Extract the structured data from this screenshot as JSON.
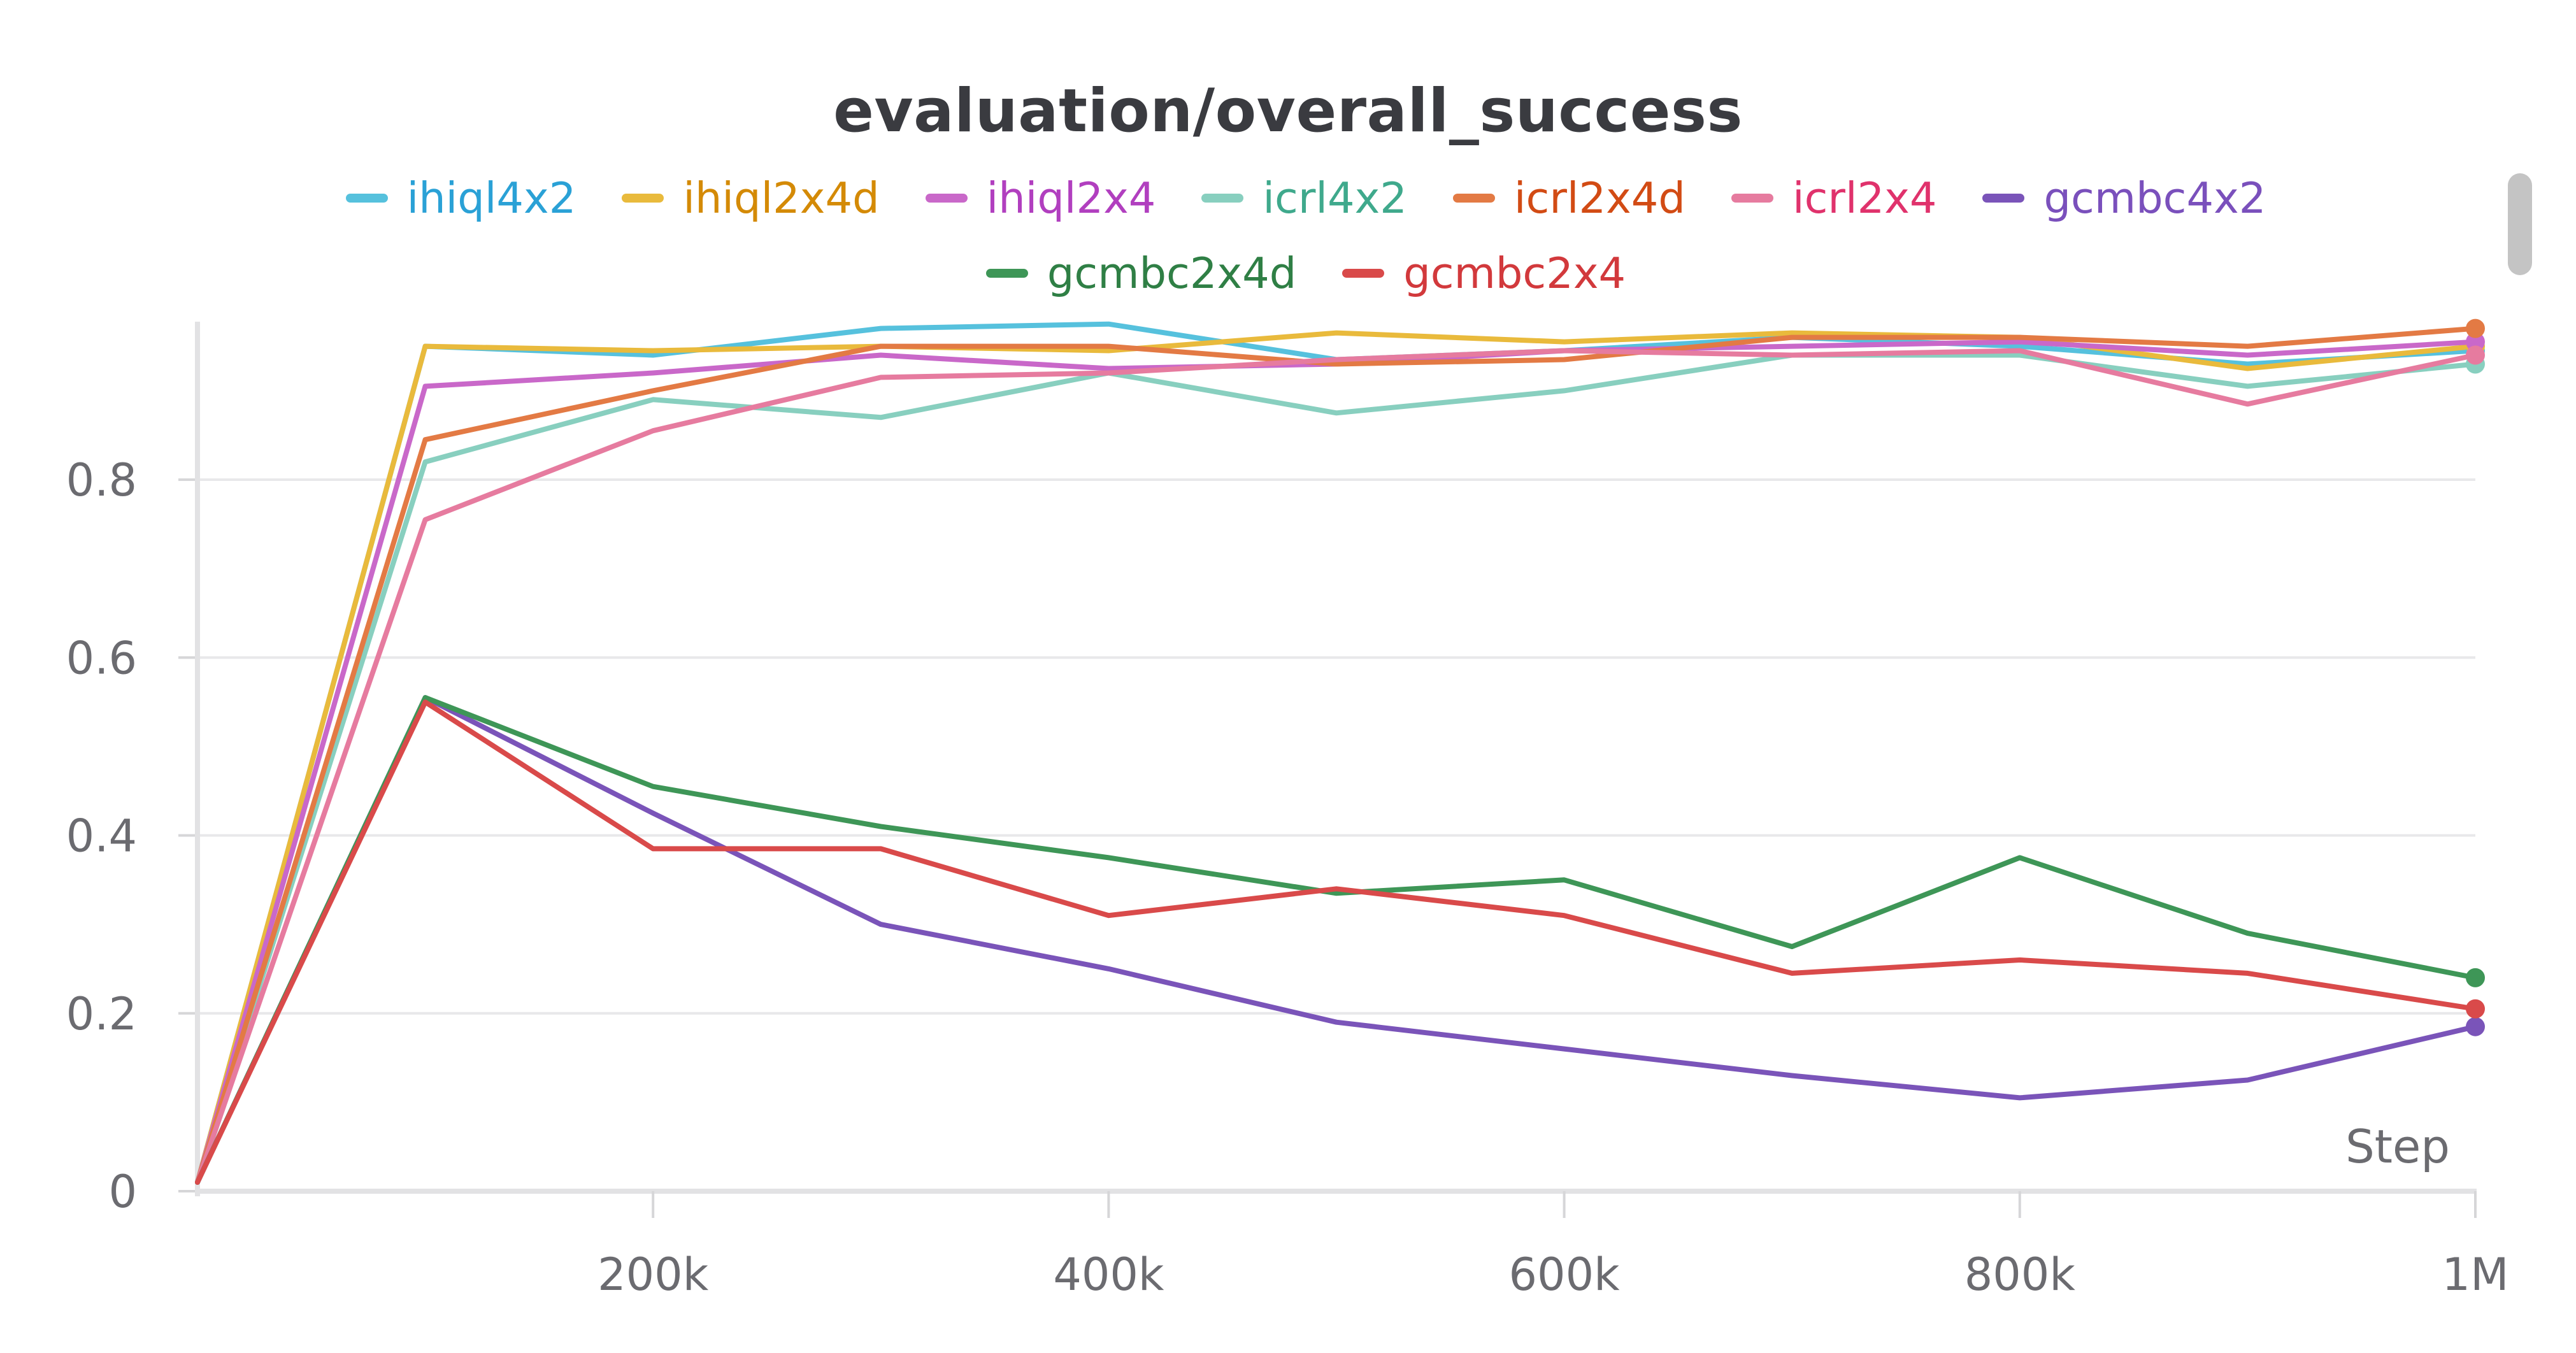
{
  "chart_data": {
    "type": "line",
    "title": "evaluation/overall_success",
    "xlabel": "Step",
    "ylabel": "",
    "xlim": [
      0,
      1000000
    ],
    "ylim": [
      0,
      0.96
    ],
    "x_ticks": [
      {
        "value": 200000,
        "label": "200k"
      },
      {
        "value": 400000,
        "label": "400k"
      },
      {
        "value": 600000,
        "label": "600k"
      },
      {
        "value": 800000,
        "label": "800k"
      },
      {
        "value": 1000000,
        "label": "1M"
      }
    ],
    "y_ticks": [
      {
        "value": 0,
        "label": "0"
      },
      {
        "value": 0.2,
        "label": "0.2"
      },
      {
        "value": 0.4,
        "label": "0.4"
      },
      {
        "value": 0.6,
        "label": "0.6"
      },
      {
        "value": 0.8,
        "label": "0.8"
      }
    ],
    "grid": true,
    "legend_position": "top",
    "x": [
      0,
      100000,
      200000,
      300000,
      400000,
      500000,
      600000,
      700000,
      800000,
      900000,
      1000000
    ],
    "series": [
      {
        "name": "ihiql4x2",
        "color": "#56c1dd",
        "label_color": "#2aa1d6",
        "values": [
          0.01,
          0.95,
          0.94,
          0.97,
          0.975,
          0.935,
          0.945,
          0.96,
          0.95,
          0.93,
          0.945
        ]
      },
      {
        "name": "ihiql2x4d",
        "color": "#e9ba3c",
        "label_color": "#d48a06",
        "values": [
          0.01,
          0.95,
          0.945,
          0.95,
          0.945,
          0.965,
          0.955,
          0.965,
          0.96,
          0.925,
          0.95
        ]
      },
      {
        "name": "ihiql2x4",
        "color": "#c968c9",
        "label_color": "#b13fbf",
        "values": [
          0.01,
          0.905,
          0.92,
          0.94,
          0.925,
          0.93,
          0.945,
          0.95,
          0.955,
          0.94,
          0.955
        ]
      },
      {
        "name": "icrl4x2",
        "color": "#88cfbf",
        "label_color": "#3fa98c",
        "values": [
          0.01,
          0.82,
          0.89,
          0.87,
          0.92,
          0.875,
          0.9,
          0.94,
          0.94,
          0.905,
          0.93
        ]
      },
      {
        "name": "icrl2x4d",
        "color": "#e37a44",
        "label_color": "#d24b14",
        "values": [
          0.01,
          0.845,
          0.9,
          0.95,
          0.95,
          0.93,
          0.935,
          0.96,
          0.96,
          0.95,
          0.97
        ]
      },
      {
        "name": "icrl2x4",
        "color": "#e67b9f",
        "label_color": "#e0326c",
        "values": [
          0.01,
          0.755,
          0.855,
          0.915,
          0.92,
          0.935,
          0.945,
          0.94,
          0.945,
          0.885,
          0.94
        ]
      },
      {
        "name": "gcmbc4x2",
        "color": "#7a54b9",
        "label_color": "#7a50bc",
        "values": [
          0.01,
          0.555,
          0.425,
          0.3,
          0.25,
          0.19,
          0.16,
          0.13,
          0.105,
          0.125,
          0.185
        ]
      },
      {
        "name": "gcmbc2x4d",
        "color": "#3e9657",
        "label_color": "#2f7f45",
        "values": [
          0.01,
          0.555,
          0.455,
          0.41,
          0.375,
          0.335,
          0.35,
          0.275,
          0.375,
          0.29,
          0.24
        ]
      },
      {
        "name": "gcmbc2x4",
        "color": "#d94a4a",
        "label_color": "#d2393c",
        "values": [
          0.01,
          0.55,
          0.385,
          0.385,
          0.31,
          0.34,
          0.31,
          0.245,
          0.26,
          0.245,
          0.205
        ]
      }
    ]
  }
}
